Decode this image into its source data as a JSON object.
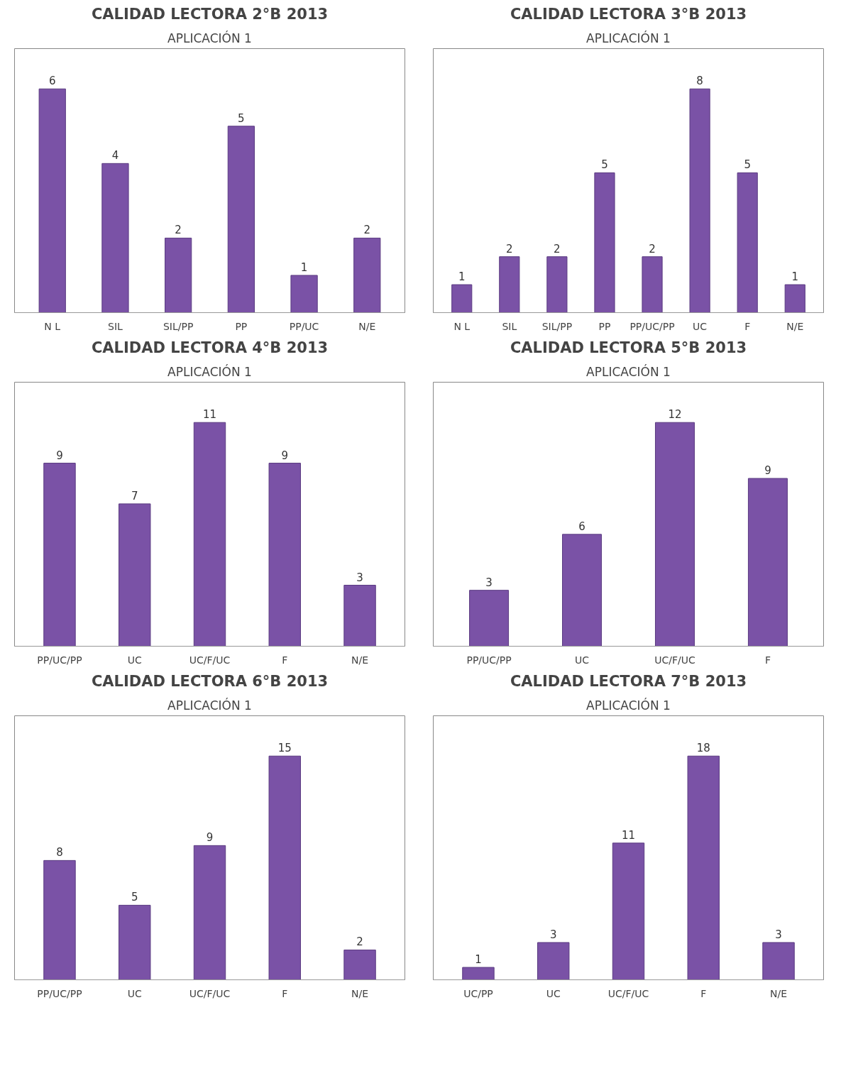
{
  "chart_data": [
    {
      "type": "bar",
      "title": "CALIDAD LECTORA 2°B 2013",
      "subtitle": "APLICACIÓN 1",
      "categories": [
        "N L",
        "SIL",
        "SIL/PP",
        "PP",
        "PP/UC",
        "N/E"
      ],
      "values": [
        6,
        4,
        2,
        5,
        1,
        2
      ],
      "color": "#7a52a6",
      "data_labels": true,
      "grid": false
    },
    {
      "type": "bar",
      "title": "CALIDAD LECTORA 3°B 2013",
      "subtitle": "APLICACIÓN 1",
      "categories": [
        "N L",
        "SIL",
        "SIL/PP",
        "PP",
        "PP/UC/PP",
        "UC",
        "F",
        "N/E"
      ],
      "values": [
        1,
        2,
        2,
        5,
        2,
        8,
        5,
        1
      ],
      "color": "#7a52a6",
      "data_labels": true,
      "grid": false
    },
    {
      "type": "bar",
      "title": "CALIDAD LECTORA 4°B 2013",
      "subtitle": "APLICACIÓN 1",
      "categories": [
        "PP/UC/PP",
        "UC",
        "UC/F/UC",
        "F",
        "N/E"
      ],
      "values": [
        9,
        7,
        11,
        9,
        3
      ],
      "color": "#7a52a6",
      "data_labels": true,
      "grid": false
    },
    {
      "type": "bar",
      "title": "CALIDAD LECTORA 5°B 2013",
      "subtitle": "APLICACIÓN 1",
      "categories": [
        "PP/UC/PP",
        "UC",
        "UC/F/UC",
        "F"
      ],
      "values": [
        3,
        6,
        12,
        9
      ],
      "color": "#7a52a6",
      "data_labels": true,
      "grid": false
    },
    {
      "type": "bar",
      "title": "CALIDAD LECTORA 6°B 2013",
      "subtitle": "APLICACIÓN 1",
      "categories": [
        "PP/UC/PP",
        "UC",
        "UC/F/UC",
        "F",
        "N/E"
      ],
      "values": [
        8,
        5,
        9,
        15,
        2
      ],
      "color": "#7a52a6",
      "data_labels": true,
      "grid": false
    },
    {
      "type": "bar",
      "title": "CALIDAD LECTORA 7°B 2013",
      "subtitle": "APLICACIÓN 1",
      "categories": [
        "UC/PP",
        "UC",
        "UC/F/UC",
        "F",
        "N/E"
      ],
      "values": [
        1,
        3,
        11,
        18,
        3
      ],
      "color": "#7a52a6",
      "data_labels": true,
      "grid": false
    }
  ]
}
